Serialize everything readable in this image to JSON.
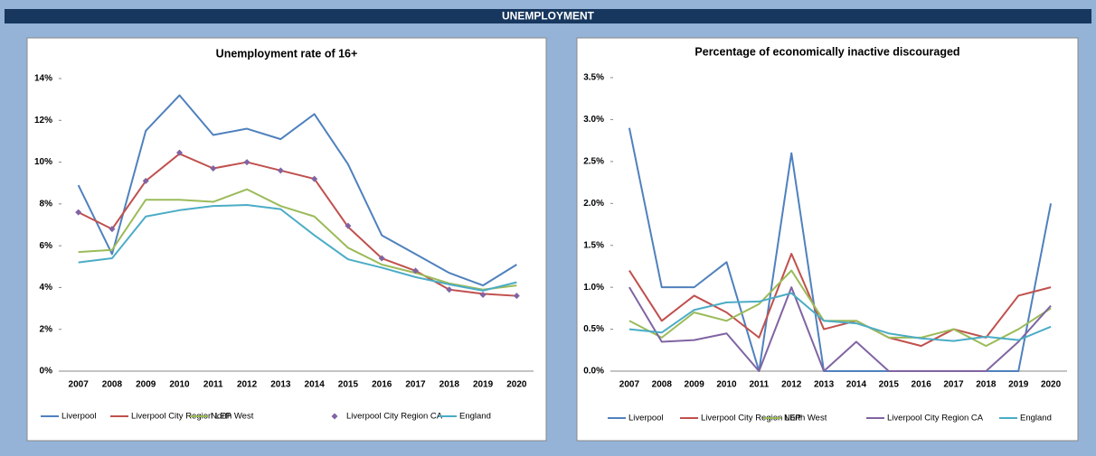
{
  "header": {
    "title": "UNEMPLOYMENT"
  },
  "chart_data": [
    {
      "type": "line",
      "title": "Unemployment rate of 16+",
      "categories": [
        "2007",
        "2008",
        "2009",
        "2010",
        "2011",
        "2012",
        "2013",
        "2014",
        "2015",
        "2016",
        "2017",
        "2018",
        "2019",
        "2020"
      ],
      "ylim": [
        0,
        14
      ],
      "yticks": [
        {
          "value": 0,
          "label": "0%"
        },
        {
          "value": 2,
          "label": "2%"
        },
        {
          "value": 4,
          "label": "4%"
        },
        {
          "value": 6,
          "label": "6%"
        },
        {
          "value": 8,
          "label": "8%"
        },
        {
          "value": 10,
          "label": "10%"
        },
        {
          "value": 12,
          "label": "12%"
        },
        {
          "value": 14,
          "label": "14%"
        }
      ],
      "grid": false,
      "legend": "bottom",
      "series": [
        {
          "name": "Liverpool",
          "color": "#4f81bd",
          "style": "line",
          "values": [
            8.9,
            5.6,
            11.5,
            13.2,
            11.3,
            11.6,
            11.1,
            12.3,
            9.9,
            6.5,
            5.6,
            4.7,
            4.1,
            5.1
          ]
        },
        {
          "name": "Liverpool City Region LEP",
          "color": "#c0504d",
          "style": "line",
          "values": [
            7.6,
            6.8,
            9.1,
            10.4,
            9.7,
            10.0,
            9.6,
            9.2,
            6.9,
            5.4,
            4.8,
            3.9,
            3.7,
            3.6
          ]
        },
        {
          "name": "North West",
          "color": "#9bbb59",
          "style": "line",
          "values": [
            5.7,
            5.8,
            8.2,
            8.2,
            8.1,
            8.7,
            7.9,
            7.4,
            5.9,
            5.1,
            4.7,
            4.2,
            3.9,
            4.1
          ]
        },
        {
          "name": "Liverpool City Region CA",
          "color": "#8064a2",
          "style": "markers",
          "values": [
            7.6,
            6.8,
            9.1,
            10.45,
            9.7,
            10.0,
            9.6,
            9.2,
            6.95,
            5.4,
            4.8,
            3.9,
            3.65,
            3.6
          ]
        },
        {
          "name": "England",
          "color": "#4bacc6",
          "style": "line",
          "values": [
            5.2,
            5.4,
            7.4,
            7.7,
            7.9,
            7.95,
            7.75,
            6.5,
            5.35,
            4.95,
            4.5,
            4.15,
            3.85,
            4.25
          ]
        }
      ]
    },
    {
      "type": "line",
      "title": "Percentage of economically inactive discouraged",
      "categories": [
        "2007",
        "2008",
        "2009",
        "2010",
        "2011",
        "2012",
        "2013",
        "2014",
        "2015",
        "2016",
        "2017",
        "2018",
        "2019",
        "2020"
      ],
      "ylim": [
        0,
        3.5
      ],
      "yticks": [
        {
          "value": 0,
          "label": "0.0%"
        },
        {
          "value": 0.5,
          "label": "0.5%"
        },
        {
          "value": 1,
          "label": "1.0%"
        },
        {
          "value": 1.5,
          "label": "1.5%"
        },
        {
          "value": 2,
          "label": "2.0%"
        },
        {
          "value": 2.5,
          "label": "2.5%"
        },
        {
          "value": 3,
          "label": "3.0%"
        },
        {
          "value": 3.5,
          "label": "3.5%"
        }
      ],
      "grid": false,
      "legend": "bottom",
      "series": [
        {
          "name": "Liverpool",
          "color": "#4f81bd",
          "style": "line",
          "values": [
            2.9,
            1.0,
            1.0,
            1.3,
            0.0,
            2.6,
            0.0,
            0.0,
            0.0,
            0.0,
            0.0,
            0.0,
            0.0,
            2.0
          ]
        },
        {
          "name": "Liverpool City Region LEP",
          "color": "#c0504d",
          "style": "line",
          "values": [
            1.2,
            0.6,
            0.9,
            0.7,
            0.4,
            1.4,
            0.5,
            0.6,
            0.4,
            0.3,
            0.5,
            0.4,
            0.9,
            1.0
          ]
        },
        {
          "name": "North West",
          "color": "#9bbb59",
          "style": "line",
          "values": [
            0.6,
            0.4,
            0.7,
            0.6,
            0.8,
            1.2,
            0.6,
            0.6,
            0.4,
            0.4,
            0.5,
            0.3,
            0.5,
            0.75
          ]
        },
        {
          "name": "Liverpool City Region CA",
          "color": "#8064a2",
          "style": "line",
          "values": [
            1.0,
            0.35,
            0.37,
            0.45,
            0.0,
            1.0,
            0.0,
            0.35,
            0.0,
            0.0,
            0.0,
            0.0,
            0.35,
            0.78
          ]
        },
        {
          "name": "England",
          "color": "#4bacc6",
          "style": "line",
          "values": [
            0.5,
            0.46,
            0.73,
            0.82,
            0.83,
            0.93,
            0.6,
            0.57,
            0.45,
            0.39,
            0.36,
            0.41,
            0.37,
            0.53
          ]
        }
      ]
    }
  ]
}
